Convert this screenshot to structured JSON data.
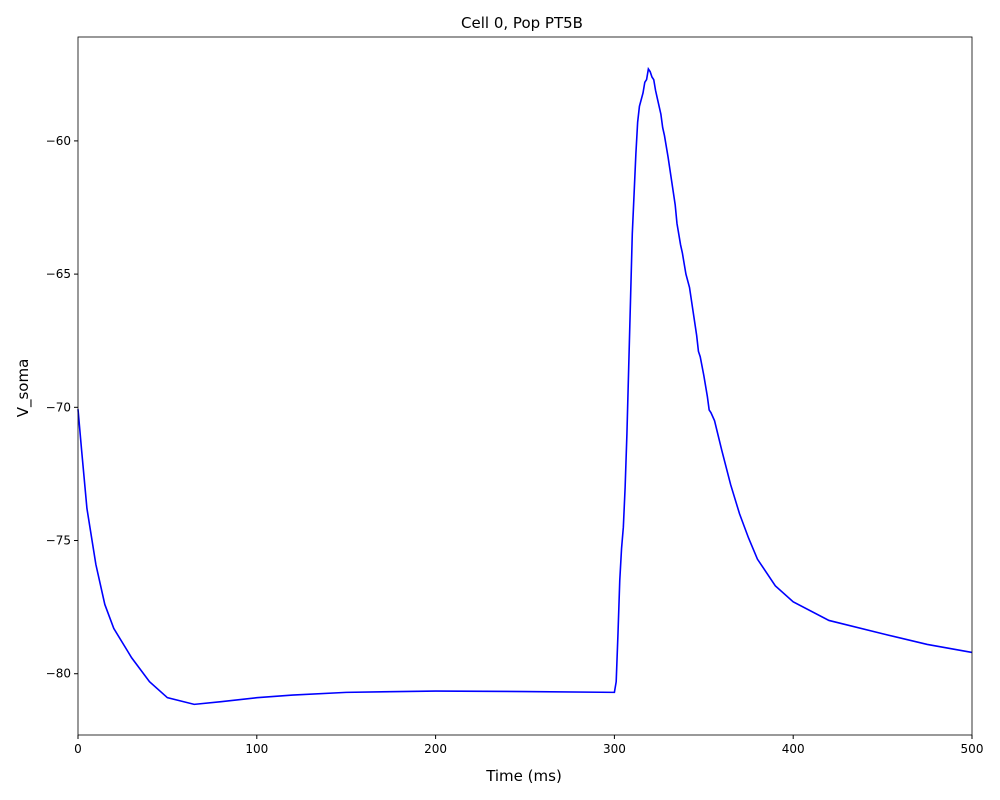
{
  "chart_data": {
    "type": "line",
    "title": "Cell 0, Pop PT5B",
    "x_label": "Time (ms)",
    "y_label": "V_soma",
    "x": [
      0,
      2,
      5,
      10,
      15,
      20,
      30,
      40,
      50,
      65,
      80,
      100,
      120,
      150,
      200,
      250,
      300,
      301,
      302,
      303,
      304,
      305,
      306,
      307,
      308,
      309,
      310,
      311,
      312,
      313,
      314,
      316,
      317,
      318,
      319,
      320,
      321,
      322,
      323,
      324,
      326,
      327,
      328,
      330,
      332,
      334,
      335,
      336,
      337,
      338,
      339,
      340,
      342,
      344,
      346,
      347,
      348,
      350,
      352,
      353,
      354,
      356,
      360,
      365,
      370,
      375,
      380,
      390,
      400,
      420,
      450,
      475,
      500
    ],
    "series": [
      {
        "name": "V_soma",
        "color": "#0000ff",
        "values": [
          -70.07,
          -71.6,
          -73.8,
          -75.9,
          -77.4,
          -78.3,
          -79.4,
          -80.3,
          -80.9,
          -81.15,
          -81.05,
          -80.9,
          -80.8,
          -80.7,
          -80.65,
          -80.67,
          -80.7,
          -80.3,
          -78.5,
          -76.5,
          -75.3,
          -74.5,
          -73,
          -71,
          -68.5,
          -66,
          -63.5,
          -62,
          -60.5,
          -59.3,
          -58.7,
          -58.2,
          -57.8,
          -57.7,
          -57.3,
          -57.4,
          -57.6,
          -57.7,
          -58.1,
          -58.4,
          -59.0,
          -59.5,
          -59.8,
          -60.6,
          -61.5,
          -62.4,
          -63.1,
          -63.5,
          -63.9,
          -64.2,
          -64.6,
          -65.0,
          -65.5,
          -66.4,
          -67.3,
          -67.9,
          -68.1,
          -68.8,
          -69.6,
          -70.1,
          -70.2,
          -70.5,
          -71.6,
          -72.9,
          -74.0,
          -74.9,
          -75.7,
          -76.7,
          -77.3,
          -78.0,
          -78.5,
          -78.9,
          -79.2
        ]
      }
    ],
    "xlim": [
      0,
      500
    ],
    "xticks": [
      0,
      100,
      200,
      300,
      400,
      500
    ],
    "ylim": [
      -82.3,
      -56.1
    ],
    "yticks": [
      {
        "value": -80,
        "label": "−80"
      },
      {
        "value": -75,
        "label": "−75"
      },
      {
        "value": -70,
        "label": "−70"
      },
      {
        "value": -65,
        "label": "−65"
      },
      {
        "value": -60,
        "label": "−60"
      }
    ],
    "grid": false
  }
}
